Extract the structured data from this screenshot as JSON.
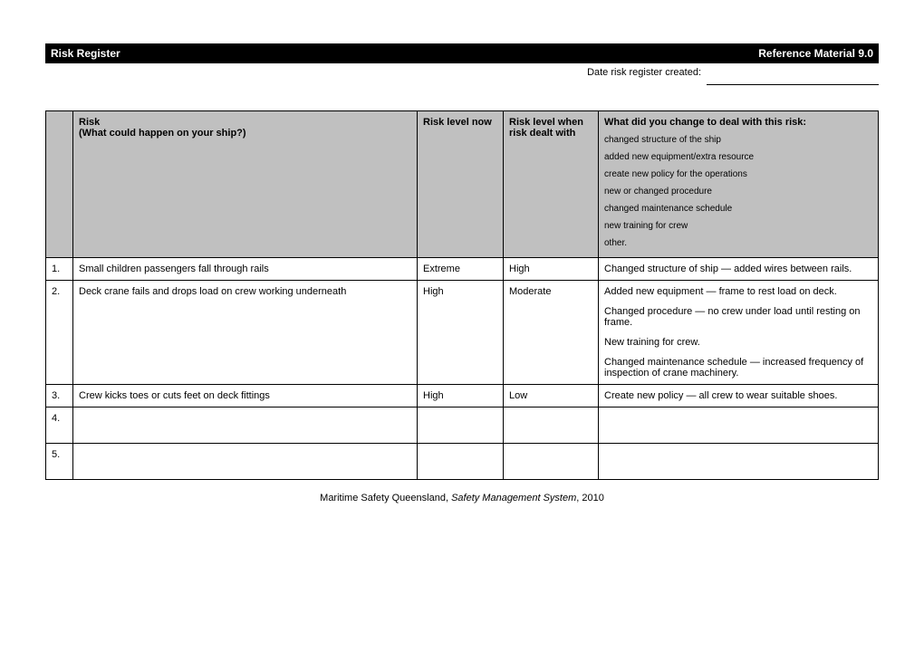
{
  "title_bar": {
    "left": "Risk Register",
    "right": "Reference Material 9.0",
    "bg_color": "#000000",
    "text_color": "#ffffff"
  },
  "date": {
    "label": "Date risk register created:",
    "value": ""
  },
  "table": {
    "header_bg": "#c0c0c0",
    "columns": {
      "num": "",
      "risk_title": "Risk",
      "risk_sub": "(What could happen on your ship?)",
      "level_now": "Risk level now",
      "level_dealt": "Risk level when risk dealt with",
      "change_title": "What did you change to deal with this risk:",
      "change_items": [
        "changed structure of the ship",
        "added new equipment/extra resource",
        "create new policy for the operations",
        "new or changed procedure",
        "changed maintenance schedule",
        "new training for crew",
        "other."
      ]
    },
    "rows": [
      {
        "num": "1.",
        "risk": "Small children passengers fall through rails",
        "level_now": "Extreme",
        "level_dealt": "High",
        "changes": [
          "Changed structure of ship — added wires between rails."
        ]
      },
      {
        "num": "2.",
        "risk": "Deck crane fails and drops load on crew working underneath",
        "level_now": "High",
        "level_dealt": "Moderate",
        "changes": [
          "Added new equipment — frame to rest load on deck.",
          "Changed procedure — no crew under load until resting on frame.",
          "New training for crew.",
          "Changed maintenance schedule — increased frequency of inspection of crane machinery."
        ]
      },
      {
        "num": "3.",
        "risk": "Crew kicks toes or cuts feet on deck fittings",
        "level_now": "High",
        "level_dealt": "Low",
        "changes": [
          "Create new policy — all crew to wear suitable shoes."
        ]
      },
      {
        "num": "4.",
        "risk": "",
        "level_now": "",
        "level_dealt": "",
        "changes": []
      },
      {
        "num": "5.",
        "risk": "",
        "level_now": "",
        "level_dealt": "",
        "changes": []
      }
    ]
  },
  "footer": {
    "org": "Maritime Safety Queensland, ",
    "doc": "Safety Management System",
    "year": ", 2010"
  }
}
